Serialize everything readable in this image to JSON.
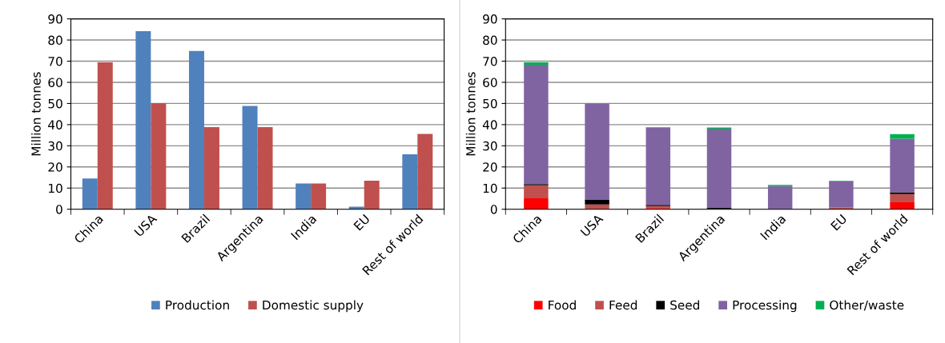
{
  "chart_data": [
    {
      "type": "bar",
      "ylabel": "Million tonnes",
      "categories": [
        "China",
        "USA",
        "Brazil",
        "Argentina",
        "India",
        "EU",
        "Rest of world"
      ],
      "ylim": [
        0,
        90
      ],
      "yticks": [
        0,
        10,
        20,
        30,
        40,
        50,
        60,
        70,
        80,
        90
      ],
      "grid": "y",
      "legend": "bottom",
      "series": [
        {
          "name": "Production",
          "color": "#4f81bd",
          "values": [
            14.5,
            84.2,
            74.8,
            48.8,
            12.2,
            1.2,
            26.0
          ]
        },
        {
          "name": "Domestic supply",
          "color": "#c0504d",
          "values": [
            69.4,
            50.2,
            38.8,
            38.8,
            12.2,
            13.5,
            35.6
          ]
        }
      ]
    },
    {
      "type": "bar",
      "stacked": true,
      "ylabel": "Million tonnes",
      "categories": [
        "China",
        "USA",
        "Brazil",
        "Argentina",
        "India",
        "EU",
        "Rest of world"
      ],
      "ylim": [
        0,
        90
      ],
      "yticks": [
        0,
        10,
        20,
        30,
        40,
        50,
        60,
        70,
        80,
        90
      ],
      "grid": "y",
      "legend": "bottom",
      "series": [
        {
          "name": "Food",
          "color": "#ff0000",
          "values": [
            5.2,
            0,
            0.5,
            0,
            0,
            0,
            3.3
          ]
        },
        {
          "name": "Feed",
          "color": "#c0504d",
          "values": [
            6.1,
            2.2,
            1.0,
            null,
            0,
            0.7,
            3.9
          ]
        },
        {
          "name": "Seed",
          "color": "#000000",
          "values": [
            0.6,
            2.2,
            0.6,
            0.8,
            null,
            0,
            0.8
          ]
        },
        {
          "name": "Processing",
          "color": "#8064a2",
          "values": [
            56.4,
            45.6,
            36.5,
            37.3,
            10.9,
            12.6,
            25.3
          ]
        },
        {
          "name": "Other/waste",
          "color": "#00b050",
          "values": [
            1.1,
            null,
            0.2,
            0.5,
            0.6,
            0.2,
            2.2
          ]
        }
      ]
    }
  ]
}
